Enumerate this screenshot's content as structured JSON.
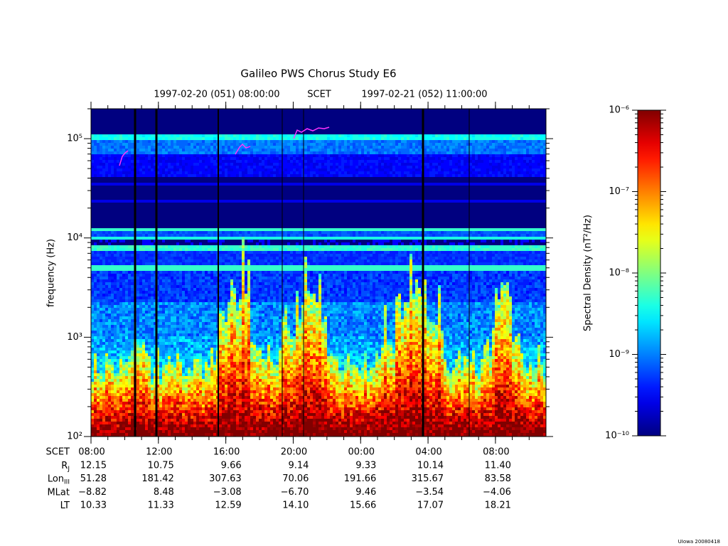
{
  "chart_data": {
    "type": "spectrogram",
    "title": "Galileo PWS Chorus Study  E6",
    "subtitle": {
      "start": "1997-02-20 (051) 08:00:00",
      "frame": "SCET",
      "end": "1997-02-21 (052) 11:00:00"
    },
    "y_label": "frequency (Hz)",
    "log_y": true,
    "ylim": [
      100,
      200000
    ],
    "yticks": [
      {
        "value": 100,
        "label": "10²"
      },
      {
        "value": 1000,
        "label": "10³"
      },
      {
        "value": 10000,
        "label": "10⁴"
      },
      {
        "value": 100000,
        "label": "10⁵"
      }
    ],
    "xlim": [
      "1997-02-20T08:00",
      "1997-02-21T11:00"
    ],
    "xticks": [
      {
        "value": "1997-02-20T08:00",
        "label": "08:00"
      },
      {
        "value": "1997-02-20T12:00",
        "label": "12:00"
      },
      {
        "value": "1997-02-20T16:00",
        "label": "16:00"
      },
      {
        "value": "1997-02-20T20:00",
        "label": "20:00"
      },
      {
        "value": "1997-02-21T00:00",
        "label": "00:00"
      },
      {
        "value": "1997-02-21T04:00",
        "label": "04:00"
      },
      {
        "value": "1997-02-21T08:00",
        "label": "08:00"
      }
    ],
    "ephemeris": {
      "time_label": "SCET",
      "rows": [
        {
          "label": "R",
          "sub": "J",
          "values": [
            "12.15",
            "10.75",
            "9.66",
            "9.14",
            "9.33",
            "10.14",
            "11.40"
          ]
        },
        {
          "label": "Lon",
          "sub": "III",
          "values": [
            "51.28",
            "181.42",
            "307.63",
            "70.06",
            "191.66",
            "315.67",
            "83.58"
          ]
        },
        {
          "label": "MLat",
          "values": [
            "−8.82",
            "8.48",
            "−3.08",
            "−6.70",
            "9.46",
            "−3.54",
            "−4.06"
          ]
        },
        {
          "label": "LT",
          "values": [
            "10.33",
            "11.33",
            "12.59",
            "14.10",
            "15.66",
            "17.07",
            "18.21"
          ]
        }
      ]
    },
    "colorbar": {
      "label": "Spectral Density (nT²/Hz)",
      "log": true,
      "colormap": "jet",
      "lim": [
        1e-10,
        1e-06
      ],
      "ticks": [
        {
          "value": 1e-10,
          "label": "10⁻¹⁰"
        },
        {
          "value": 1e-09,
          "label": "10⁻⁹"
        },
        {
          "value": 1e-08,
          "label": "10⁻⁸"
        },
        {
          "value": 1e-07,
          "label": "10⁻⁷"
        },
        {
          "value": 1e-06,
          "label": "10⁻⁶"
        }
      ]
    },
    "footer": "UIowa 20080418"
  }
}
